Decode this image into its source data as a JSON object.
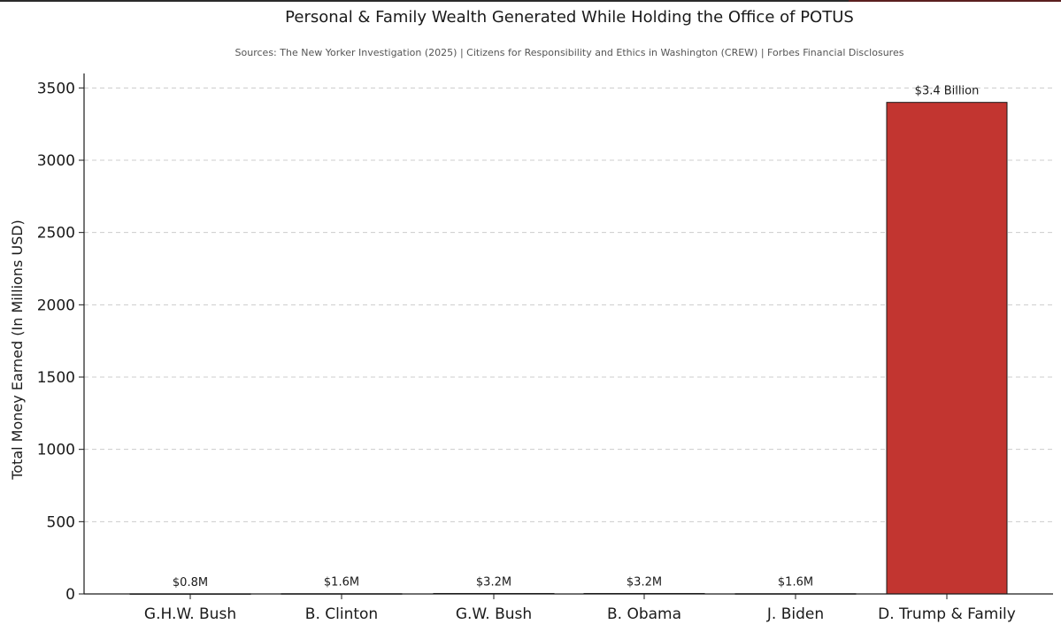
{
  "chart_data": {
    "type": "bar",
    "title": "Personal & Family Wealth Generated While Holding the Office of POTUS",
    "subtitle": "Sources: The New Yorker Investigation (2025) | Citizens for Responsibility and Ethics in Washington (CREW) | Forbes Financial Disclosures",
    "xlabel": "",
    "ylabel": "Total Money Earned (In Millions USD)",
    "categories": [
      "G.H.W. Bush",
      "B. Clinton",
      "G.W. Bush",
      "B. Obama",
      "J. Biden",
      "D. Trump & Family"
    ],
    "values": [
      0.8,
      1.6,
      3.2,
      3.2,
      1.6,
      3400
    ],
    "data_labels": [
      "$0.8M",
      "$1.6M",
      "$3.2M",
      "$3.2M",
      "$1.6M",
      "$3.4 Billion"
    ],
    "ylim": [
      0,
      3600
    ],
    "yticks": [
      0,
      500,
      1000,
      1500,
      2000,
      2500,
      3000,
      3500
    ],
    "ytick_labels": [
      "0",
      "500",
      "1000",
      "1500",
      "2000",
      "2500",
      "3000",
      "3500"
    ],
    "grid": true,
    "colors": {
      "bar": "#c23530",
      "bar_edge": "#1a1a1a",
      "grid": "#cccccc",
      "axis": "#1a1a1a"
    }
  }
}
